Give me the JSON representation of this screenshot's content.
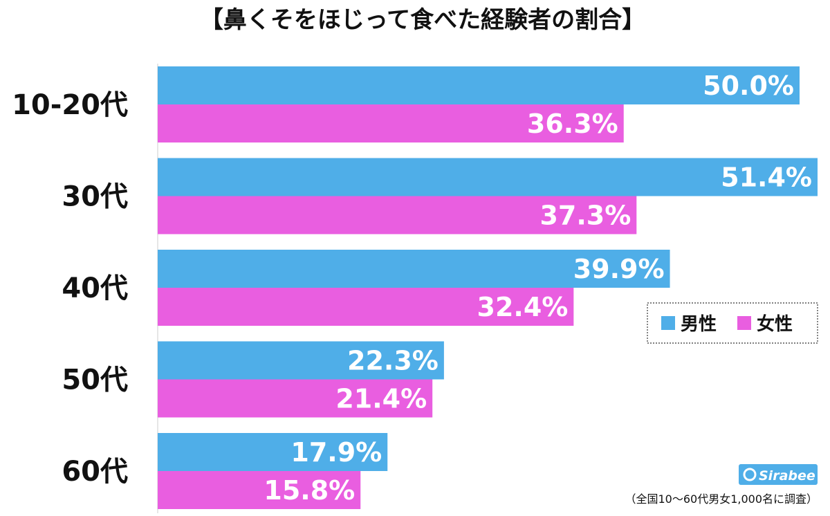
{
  "chart_data": {
    "type": "bar",
    "orientation": "horizontal",
    "title": "【鼻くそをほじって食べた経験者の割合】",
    "categories": [
      "10-20代",
      "30代",
      "40代",
      "50代",
      "60代"
    ],
    "series": [
      {
        "name": "男性",
        "color": "#4faee8",
        "values": [
          50.0,
          51.4,
          39.9,
          22.3,
          17.9
        ],
        "labels": [
          "50.0%",
          "51.4%",
          "39.9%",
          "22.3%",
          "17.9%"
        ]
      },
      {
        "name": "女性",
        "color": "#e95ee0",
        "values": [
          36.3,
          37.3,
          32.4,
          21.4,
          15.8
        ],
        "labels": [
          "36.3%",
          "37.3%",
          "32.4%",
          "21.4%",
          "15.8%"
        ]
      }
    ],
    "xlim": [
      0,
      54
    ],
    "legend": "right",
    "grid": false
  },
  "source": "（全国10〜60代男女1,000名に調査）",
  "logo": {
    "text": "Sirabee",
    "color": "#4faee8"
  }
}
